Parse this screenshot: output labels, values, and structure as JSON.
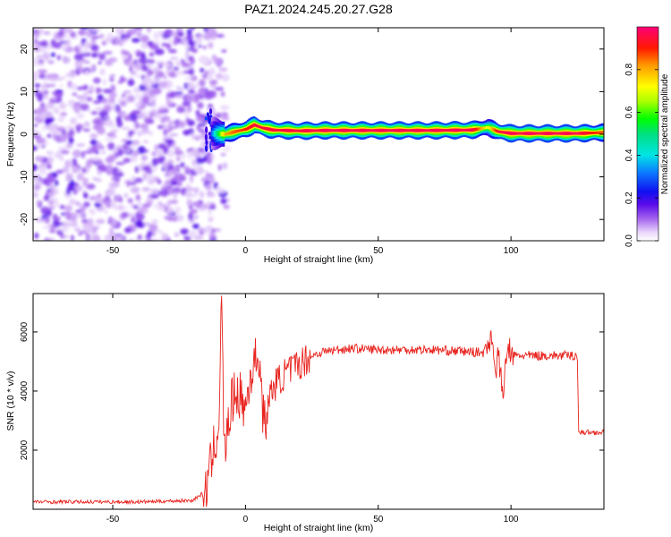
{
  "title": "PAZ1.2024.245.20.27.G28",
  "colors": {
    "snr_line": "#e8231e",
    "ridge_core": "#e8231e",
    "noise": "#8a2be2"
  },
  "chart_data": [
    {
      "type": "heatmap",
      "title": "PAZ1.2024.245.20.27.G28",
      "xlabel": "Height of straight line (km)",
      "ylabel": "Frequency (Hz)",
      "xlim": [
        -80,
        135
      ],
      "ylim": [
        -25,
        25
      ],
      "xticks": [
        -50,
        0,
        50,
        100
      ],
      "yticks": [
        -20,
        -10,
        0,
        10,
        20
      ],
      "colorbar": {
        "label": "Normalized spectral amplitude",
        "range": [
          0,
          1
        ],
        "ticks": [
          0.0,
          0.2,
          0.4,
          0.6,
          0.8
        ],
        "colormap": "rainbow (white/violet low → red/pink high)"
      },
      "noise_region_x": [
        -80,
        -12
      ],
      "ridge": {
        "x": [
          -13,
          -8,
          -5,
          0,
          3,
          6,
          10,
          20,
          30,
          50,
          70,
          85,
          91,
          95,
          100,
          110,
          125,
          135
        ],
        "freq": [
          0.2,
          0.0,
          0.5,
          1.2,
          2.2,
          1.5,
          1.0,
          0.8,
          0.9,
          0.9,
          0.9,
          1.0,
          1.6,
          0.6,
          0.2,
          0.2,
          0.2,
          0.4
        ],
        "amplitude": [
          0.3,
          0.8,
          0.85,
          0.9,
          0.95,
          0.95,
          0.95,
          0.96,
          0.97,
          0.97,
          0.97,
          0.97,
          0.7,
          0.95,
          0.97,
          0.97,
          0.97,
          0.85
        ]
      }
    },
    {
      "type": "line",
      "xlabel": "Height of straight line (km)",
      "ylabel": "SNR (10 * v/v)",
      "xlim": [
        -80,
        135
      ],
      "ylim": [
        0,
        7300
      ],
      "xticks": [
        -50,
        0,
        50,
        100
      ],
      "yticks": [
        2000,
        4000,
        6000
      ],
      "series": [
        {
          "x": [
            -80,
            -60,
            -40,
            -20,
            -15,
            -12,
            -10,
            -9,
            -8,
            -7,
            -5,
            -3,
            0,
            2,
            5,
            7,
            10,
            15,
            20,
            25,
            30,
            35,
            40,
            50,
            60,
            70,
            80,
            90,
            93,
            94,
            95,
            97,
            99,
            100,
            105,
            110,
            120,
            125,
            125.5,
            126,
            130,
            135
          ],
          "y": [
            250,
            250,
            250,
            300,
            600,
            2000,
            3000,
            7200,
            1800,
            2500,
            3700,
            4000,
            3400,
            4600,
            5300,
            2800,
            4100,
            4600,
            4900,
            5200,
            5350,
            5400,
            5450,
            5400,
            5400,
            5400,
            5350,
            5300,
            6000,
            4400,
            5300,
            3900,
            5600,
            5200,
            5200,
            5200,
            5200,
            5200,
            2600,
            2600,
            2600,
            2600
          ]
        }
      ]
    }
  ]
}
